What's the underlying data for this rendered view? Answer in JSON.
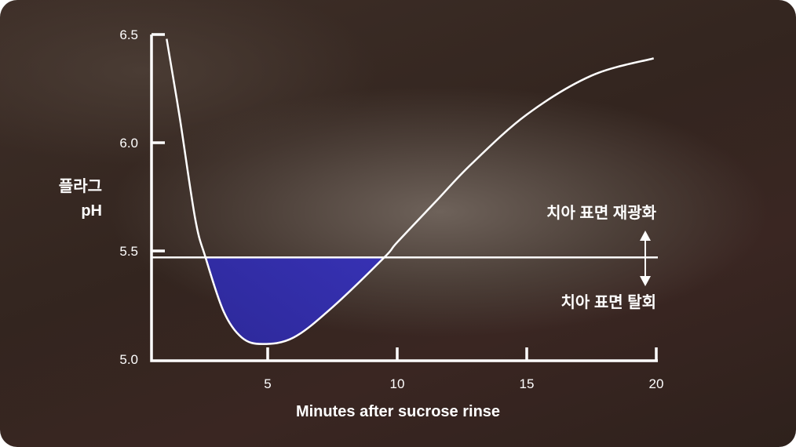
{
  "chart_data": {
    "type": "line",
    "xlabel": "Minutes after sucrose rinse",
    "ylabel": [
      "플라그",
      "pH"
    ],
    "xlim": [
      0,
      20
    ],
    "ylim": [
      5.0,
      6.5
    ],
    "x_ticks": [
      "5",
      "10",
      "15",
      "20"
    ],
    "y_ticks": [
      "6.5",
      "6.0",
      "5.5",
      "5.0"
    ],
    "threshold": 5.47,
    "annotations": {
      "above": "치아 표면 재광화",
      "below": "치아 표면 탈회"
    },
    "series": [
      {
        "x": [
          1.1,
          1.6,
          2.2,
          2.6,
          3.3,
          4.0,
          4.8,
          6.0,
          7.5,
          9.5,
          10.0,
          11.5,
          12.85,
          15.0,
          17.5,
          19.9
        ],
        "y": [
          6.48,
          6.12,
          5.65,
          5.47,
          5.22,
          5.1,
          5.07,
          5.1,
          5.24,
          5.47,
          5.54,
          5.73,
          5.9,
          6.13,
          6.31,
          6.39
        ]
      }
    ],
    "colors": {
      "line": "#ffffff",
      "fill_start": "#2c2896",
      "fill_end": "#4a42ea"
    }
  }
}
